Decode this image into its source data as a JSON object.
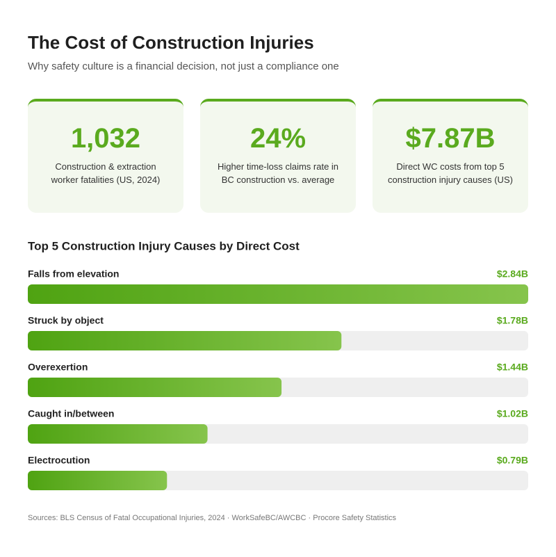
{
  "header": {
    "title": "The Cost of Construction Injuries",
    "subtitle": "Why safety culture is a financial decision, not just a compliance one"
  },
  "stats": [
    {
      "value": "1,032",
      "label": "Construction & extraction worker fatalities (US, 2024)"
    },
    {
      "value": "24%",
      "label": "Higher time-loss claims rate in BC construction vs. average"
    },
    {
      "value": "$7.87B",
      "label": "Direct WC costs from top 5 construction injury causes (US)"
    }
  ],
  "chart_data": {
    "type": "bar",
    "orientation": "horizontal",
    "title": "Top 5 Construction Injury Causes by Direct Cost",
    "categories": [
      "Falls from elevation",
      "Struck by object",
      "Overexertion",
      "Caught in/between",
      "Electrocution"
    ],
    "values": [
      2.84,
      1.78,
      1.44,
      1.02,
      0.79
    ],
    "value_labels": [
      "$2.84B",
      "$1.78B",
      "$1.44B",
      "$1.02B",
      "$0.79B"
    ],
    "xlim": [
      0,
      2.84
    ],
    "color": "#5aaa1e"
  },
  "footer": {
    "sources": "Sources: BLS Census of Fatal Occupational Injuries, 2024 · WorkSafeBC/AWCBC · Procore Safety Statistics"
  }
}
